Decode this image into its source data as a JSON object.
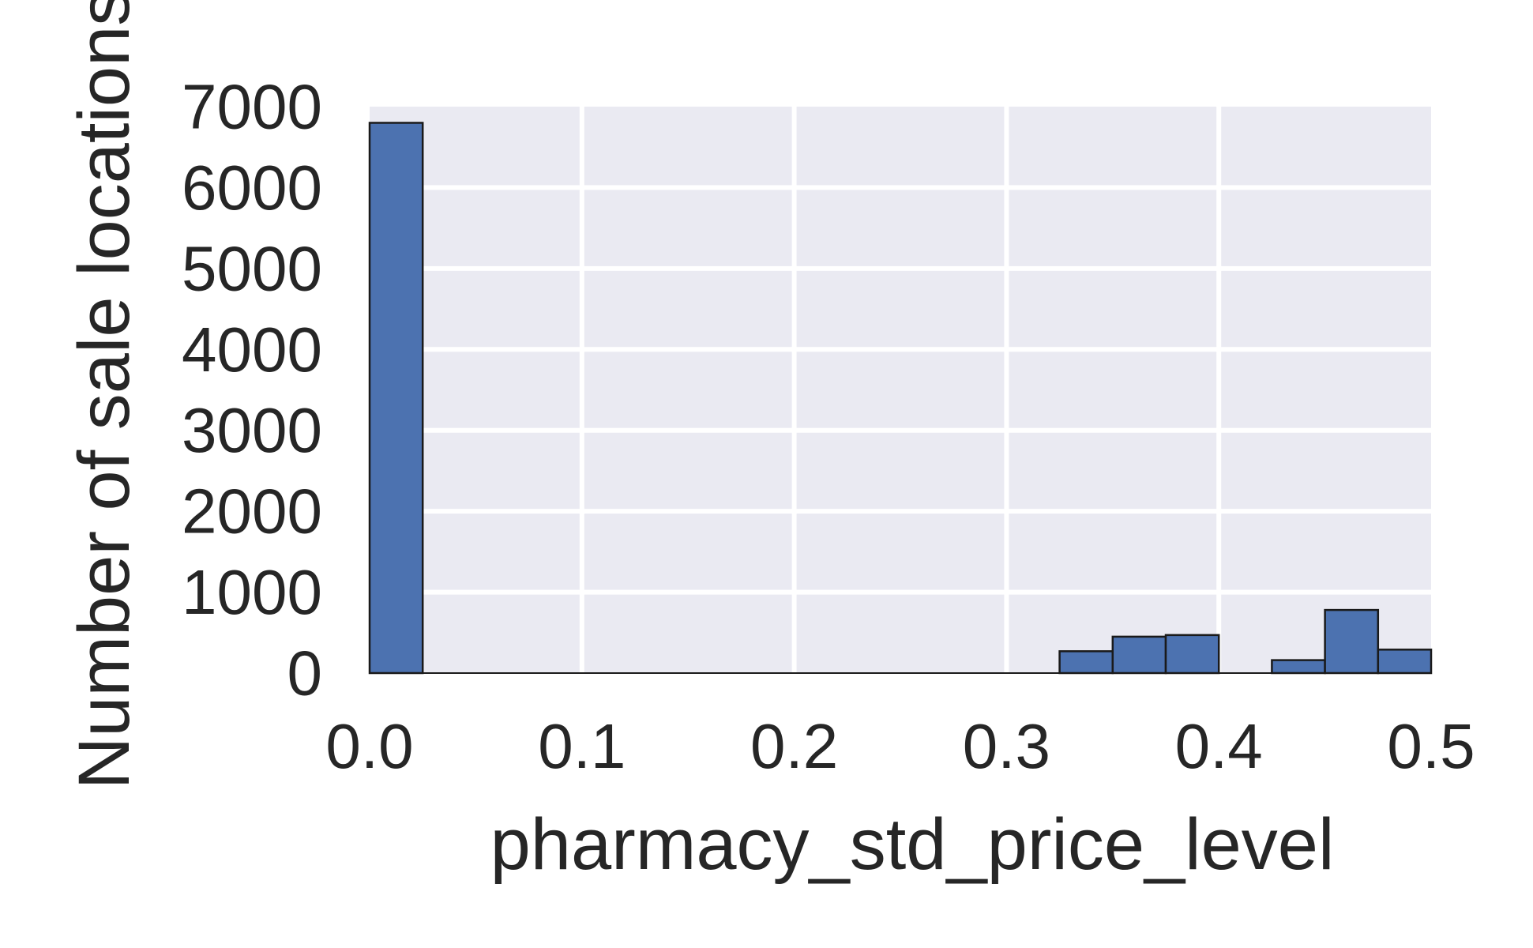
{
  "chart_data": {
    "type": "bar",
    "title": "",
    "xlabel": "pharmacy_std_price_level",
    "ylabel": "Number of sale locations",
    "xlim": [
      0.0,
      0.5
    ],
    "ylim": [
      0,
      7000
    ],
    "xticks": [
      "0.0",
      "0.1",
      "0.2",
      "0.3",
      "0.4",
      "0.5"
    ],
    "yticks": [
      "0",
      "1000",
      "2000",
      "3000",
      "4000",
      "5000",
      "6000",
      "7000"
    ],
    "grid": true,
    "legend": "none",
    "bins": [
      {
        "x0": 0.0,
        "x1": 0.025,
        "value": 6800
      },
      {
        "x0": 0.325,
        "x1": 0.35,
        "value": 270
      },
      {
        "x0": 0.35,
        "x1": 0.375,
        "value": 450
      },
      {
        "x0": 0.375,
        "x1": 0.4,
        "value": 470
      },
      {
        "x0": 0.425,
        "x1": 0.45,
        "value": 160
      },
      {
        "x0": 0.45,
        "x1": 0.475,
        "value": 780
      },
      {
        "x0": 0.475,
        "x1": 0.5,
        "value": 290
      }
    ],
    "colors": {
      "bar": "#4c72b0",
      "bar_edge": "#1a1a1a",
      "plot_background": "#eaeaf2",
      "grid": "#ffffff"
    }
  }
}
